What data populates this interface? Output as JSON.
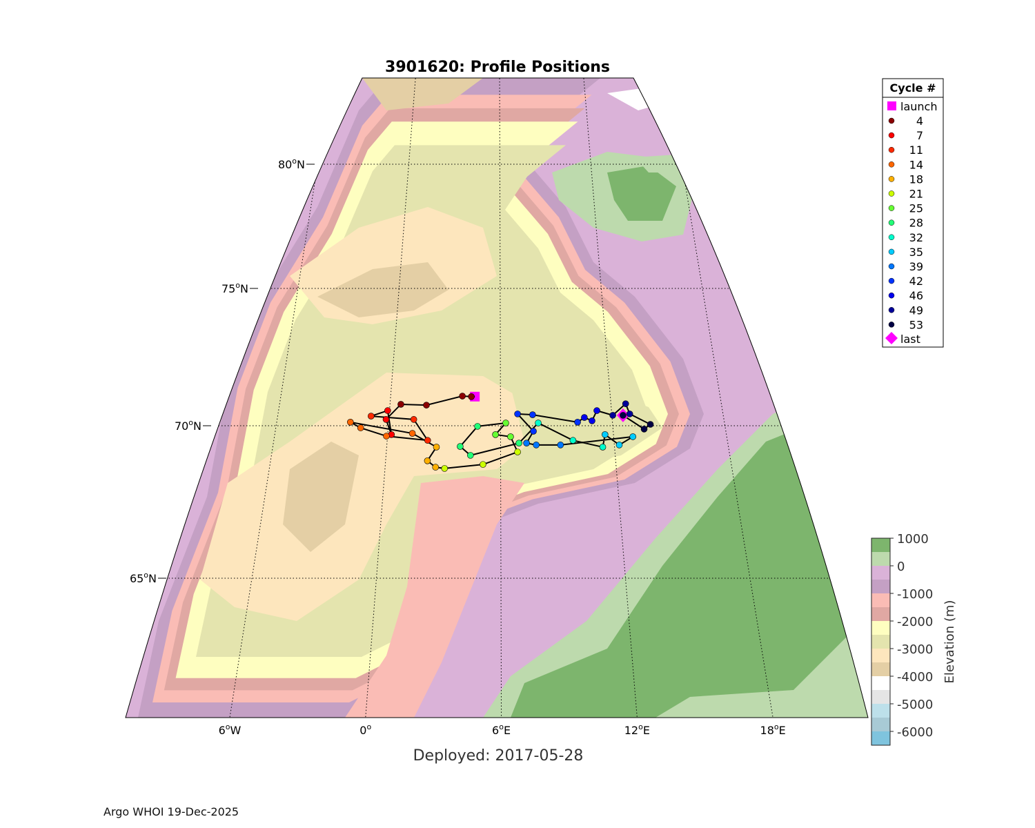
{
  "title": "3901620: Profile Positions",
  "deployed": "Deployed: 2017-05-28",
  "footer": "Argo WHOI 19-Dec-2025",
  "legend": {
    "title": "Cycle #",
    "launch": "launch",
    "last": "last",
    "launch_color": "#ff00ff",
    "entries": [
      {
        "label": "4",
        "color": "#8b0000"
      },
      {
        "label": "7",
        "color": "#ff0000"
      },
      {
        "label": "11",
        "color": "#ff2a00"
      },
      {
        "label": "14",
        "color": "#ff6600"
      },
      {
        "label": "18",
        "color": "#ffb000"
      },
      {
        "label": "21",
        "color": "#ccff00"
      },
      {
        "label": "25",
        "color": "#66ff33"
      },
      {
        "label": "28",
        "color": "#22ff77"
      },
      {
        "label": "32",
        "color": "#00ffcc"
      },
      {
        "label": "35",
        "color": "#00ccff"
      },
      {
        "label": "39",
        "color": "#0077ff"
      },
      {
        "label": "42",
        "color": "#0033ff"
      },
      {
        "label": "46",
        "color": "#0000ee"
      },
      {
        "label": "49",
        "color": "#000099"
      },
      {
        "label": "53",
        "color": "#000044"
      }
    ]
  },
  "colorbar": {
    "label": "Elevation (m)",
    "ticks": [
      "1000",
      "0",
      "-1000",
      "-2000",
      "-3000",
      "-4000",
      "-5000",
      "-6000"
    ],
    "bands": [
      "#7db56d",
      "#bddaad",
      "#dab2d8",
      "#c4a0c4",
      "#fabcb5",
      "#e0a8a3",
      "#fefec0",
      "#e4e4ae",
      "#fde6bd",
      "#e4cfa5",
      "#ffffff",
      "#e5e5e5",
      "#bde0ea",
      "#a8cad5",
      "#7fc4de"
    ]
  },
  "chart_data": {
    "type": "scatter",
    "title": "3901620: Profile Positions",
    "projection": "conic",
    "lat_ticks": [
      {
        "deg": "80",
        "hemi": "N"
      },
      {
        "deg": "75",
        "hemi": "N"
      },
      {
        "deg": "70",
        "hemi": "N"
      },
      {
        "deg": "65",
        "hemi": "N"
      }
    ],
    "lon_ticks": [
      {
        "deg": "6",
        "hemi": "W"
      },
      {
        "deg": "0",
        "hemi": ""
      },
      {
        "deg": "6",
        "hemi": "E"
      },
      {
        "deg": "12",
        "hemi": "E"
      },
      {
        "deg": "18",
        "hemi": "E"
      }
    ],
    "lat_values": [
      80,
      75,
      70,
      65
    ],
    "lon_values": [
      -6,
      0,
      6,
      12,
      18
    ],
    "launch": {
      "lon": 4.6,
      "lat": 71.06
    },
    "track": [
      [
        4.41,
        71.06
      ],
      [
        3.92,
        71.08
      ],
      [
        1.98,
        70.75
      ],
      [
        0.59,
        70.78
      ],
      [
        -0.15,
        70.23
      ],
      [
        0.2,
        69.71
      ],
      [
        -0.1,
        70.55
      ],
      [
        -0.97,
        70.35
      ],
      [
        1.34,
        70.23
      ],
      [
        2.14,
        69.52
      ],
      [
        -0.06,
        69.66
      ],
      [
        -1.47,
        69.93
      ],
      [
        -2.05,
        70.13
      ],
      [
        1.31,
        69.75
      ],
      [
        2.62,
        69.3
      ],
      [
        2.18,
        68.85
      ],
      [
        2.62,
        68.64
      ],
      [
        3.09,
        68.6
      ],
      [
        5.08,
        68.73
      ],
      [
        6.89,
        69.14
      ],
      [
        6.53,
        69.64
      ],
      [
        5.73,
        69.71
      ],
      [
        6.28,
        70.1
      ],
      [
        4.77,
        69.98
      ],
      [
        3.87,
        69.32
      ],
      [
        4.42,
        69.03
      ],
      [
        6.97,
        69.43
      ],
      [
        8.02,
        70.1
      ],
      [
        9.83,
        69.52
      ],
      [
        11.38,
        69.3
      ],
      [
        11.55,
        69.71
      ],
      [
        12.26,
        69.37
      ],
      [
        13.02,
        69.64
      ],
      [
        9.16,
        69.37
      ],
      [
        7.88,
        69.37
      ],
      [
        7.37,
        69.43
      ],
      [
        7.75,
        69.82
      ],
      [
        6.92,
        70.43
      ],
      [
        7.73,
        70.4
      ],
      [
        10.13,
        70.13
      ],
      [
        10.51,
        70.3
      ],
      [
        10.91,
        70.18
      ],
      [
        11.21,
        70.55
      ],
      [
        12.05,
        70.38
      ],
      [
        12.8,
        70.8
      ],
      [
        12.97,
        70.43
      ],
      [
        14.02,
        70.05
      ],
      [
        13.66,
        69.89
      ],
      [
        12.6,
        70.38
      ]
    ]
  }
}
